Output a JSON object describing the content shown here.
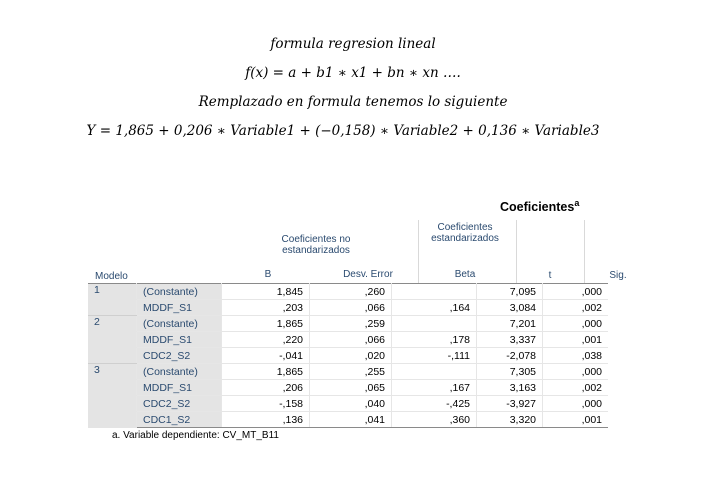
{
  "formulas": {
    "line1": "formula regresion lineal",
    "line2": "f(x) = a + b1 ∗ x1 + bn ∗ xn ….",
    "line3": "Remplazado en formula tenemos lo siguiente",
    "line4": "Y = 1,865 + 0,206 ∗ Variable1 + (−0,158) ∗ Variable2 + 0,136 ∗ Variable3"
  },
  "table": {
    "title": "Coeficientes",
    "title_sup": "a",
    "group_unstd": "Coeficientes no estandarizados",
    "group_std": "Coeficientes estandarizados",
    "col_model": "Modelo",
    "col_b": "B",
    "col_se": "Desv. Error",
    "col_beta": "Beta",
    "col_t": "t",
    "col_sig": "Sig.",
    "rows": [
      {
        "model": "1",
        "var": "(Constante)",
        "b": "1,845",
        "se": ",260",
        "beta": "",
        "t": "7,095",
        "sig": ",000"
      },
      {
        "model": "",
        "var": "MDDF_S1",
        "b": ",203",
        "se": ",066",
        "beta": ",164",
        "t": "3,084",
        "sig": ",002"
      },
      {
        "model": "2",
        "var": "(Constante)",
        "b": "1,865",
        "se": ",259",
        "beta": "",
        "t": "7,201",
        "sig": ",000"
      },
      {
        "model": "",
        "var": "MDDF_S1",
        "b": ",220",
        "se": ",066",
        "beta": ",178",
        "t": "3,337",
        "sig": ",001"
      },
      {
        "model": "",
        "var": "CDC2_S2",
        "b": "-,041",
        "se": ",020",
        "beta": "-,111",
        "t": "-2,078",
        "sig": ",038"
      },
      {
        "model": "3",
        "var": "(Constante)",
        "b": "1,865",
        "se": ",255",
        "beta": "",
        "t": "7,305",
        "sig": ",000"
      },
      {
        "model": "",
        "var": "MDDF_S1",
        "b": ",206",
        "se": ",065",
        "beta": ",167",
        "t": "3,163",
        "sig": ",002"
      },
      {
        "model": "",
        "var": "CDC2_S2",
        "b": "-,158",
        "se": ",040",
        "beta": "-,425",
        "t": "-3,927",
        "sig": ",000"
      },
      {
        "model": "",
        "var": "CDC1_S2",
        "b": ",136",
        "se": ",041",
        "beta": ",360",
        "t": "3,320",
        "sig": ",001"
      }
    ],
    "footnote": "a. Variable dependiente: CV_MT_B11"
  }
}
